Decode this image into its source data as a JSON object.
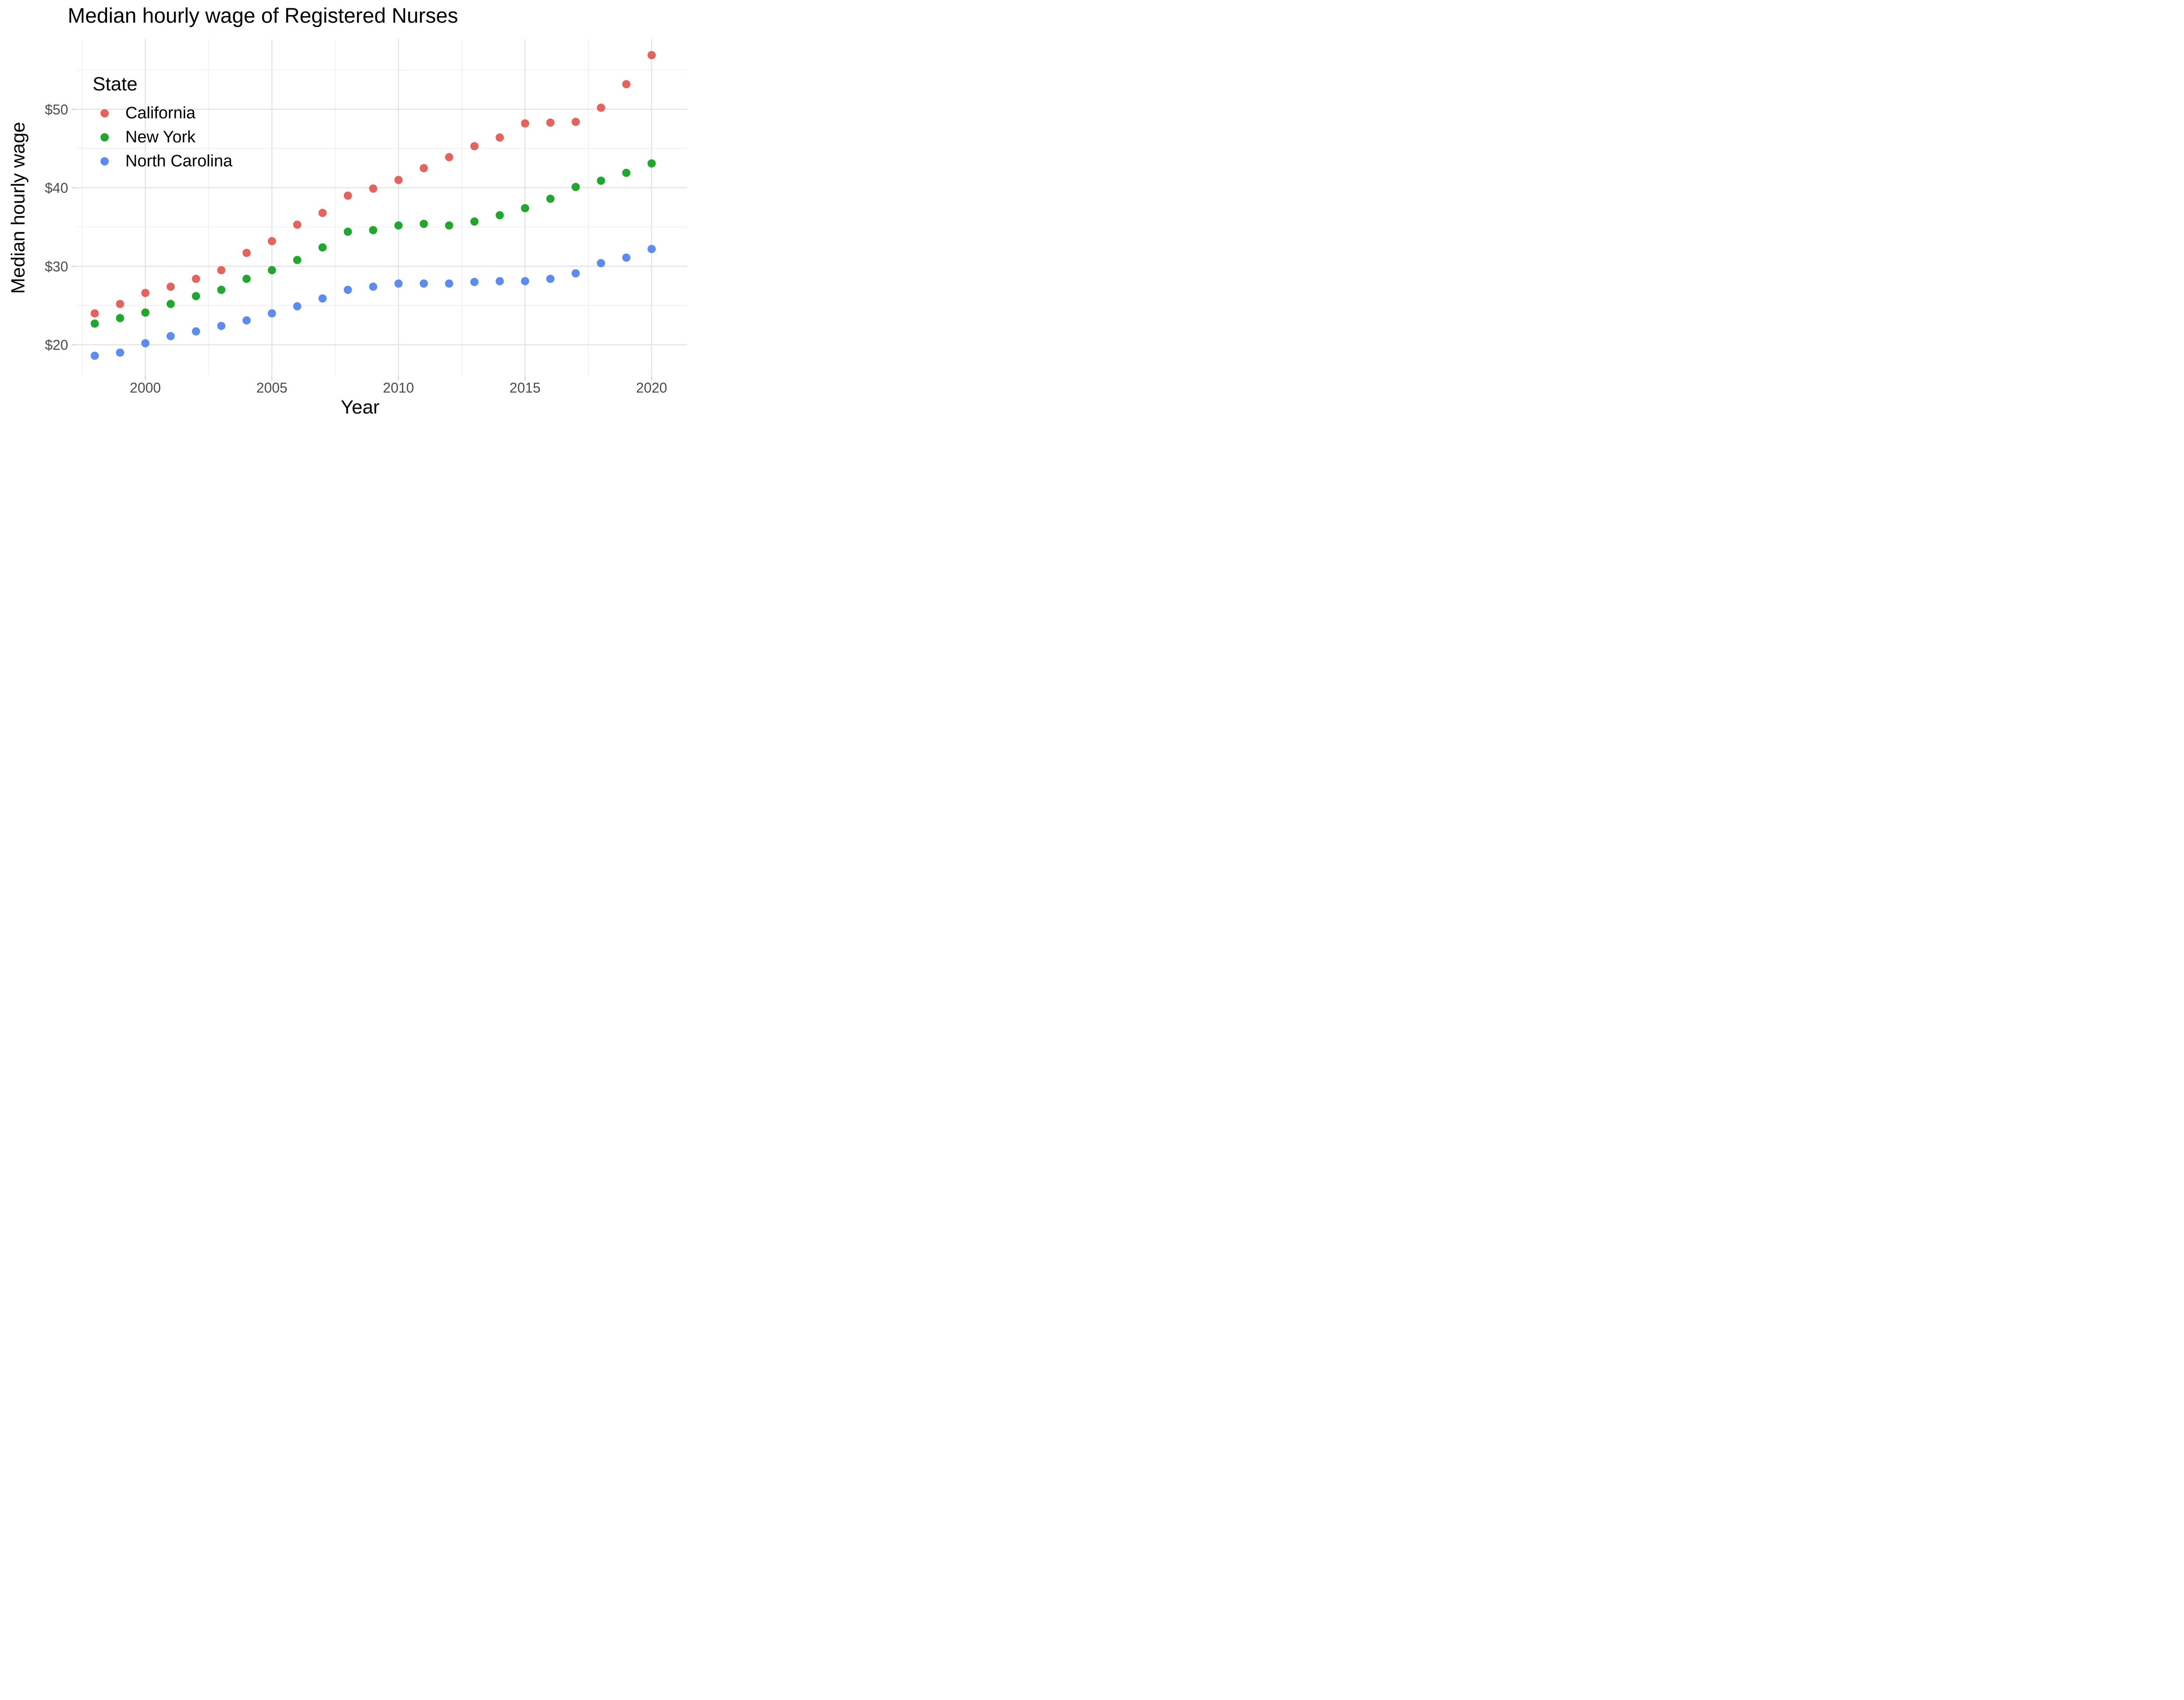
{
  "chart": {
    "title": "Median hourly wage of Registered Nurses",
    "x_axis": {
      "label": "Year",
      "major_ticks": [
        2000,
        2005,
        2010,
        2015,
        2020
      ],
      "minor_gridlines": [
        1997.5,
        2002.5,
        2007.5,
        2012.5,
        2017.5
      ]
    },
    "y_axis": {
      "label": "Median hourly wage",
      "major_ticks": [
        {
          "value": 20,
          "label": "$20"
        },
        {
          "value": 30,
          "label": "$30"
        },
        {
          "value": 40,
          "label": "$40"
        },
        {
          "value": 50,
          "label": "$50"
        }
      ],
      "minor_gridlines": [
        25,
        35,
        45,
        55
      ]
    },
    "legend": {
      "title": "State",
      "position": "inside top-left"
    },
    "colors": {
      "major_grid": "#E2E2E2",
      "minor_grid": "#ECECEC",
      "tick": "#D4D4D4",
      "tick_label": "#4A4A4A",
      "text": "#000000",
      "background": "#FFFFFF"
    }
  },
  "chart_data": {
    "type": "scatter",
    "title": "Median hourly wage of Registered Nurses",
    "xlabel": "Year",
    "ylabel": "Median hourly wage",
    "xlim": [
      1997.3,
      2021.4
    ],
    "ylim": [
      16.1,
      58.9
    ],
    "grid": true,
    "legend_position": "inside top-left",
    "x": [
      1998,
      1999,
      2000,
      2001,
      2002,
      2003,
      2004,
      2005,
      2006,
      2007,
      2008,
      2009,
      2010,
      2011,
      2012,
      2013,
      2014,
      2015,
      2016,
      2017,
      2018,
      2019,
      2020
    ],
    "series": [
      {
        "name": "California",
        "color": "#E8615A",
        "values": [
          24.0,
          25.2,
          26.6,
          27.4,
          28.4,
          29.5,
          31.7,
          33.2,
          35.3,
          36.8,
          39.0,
          39.9,
          41.0,
          42.5,
          43.9,
          45.3,
          46.4,
          48.2,
          48.3,
          48.4,
          50.2,
          53.2,
          56.9
        ]
      },
      {
        "name": "New York",
        "color": "#1FA82B",
        "values": [
          22.7,
          23.4,
          24.1,
          25.2,
          26.2,
          27.0,
          28.4,
          29.5,
          30.8,
          32.4,
          34.4,
          34.6,
          35.2,
          35.4,
          35.2,
          35.7,
          36.5,
          37.4,
          38.6,
          40.1,
          40.9,
          41.9,
          43.1
        ]
      },
      {
        "name": "North Carolina",
        "color": "#5B8CF3",
        "values": [
          18.6,
          19.0,
          20.2,
          21.1,
          21.7,
          22.4,
          23.1,
          24.0,
          24.9,
          25.9,
          27.0,
          27.4,
          27.8,
          27.8,
          27.8,
          28.0,
          28.1,
          28.1,
          28.4,
          29.1,
          30.4,
          31.1,
          32.2
        ]
      }
    ]
  }
}
